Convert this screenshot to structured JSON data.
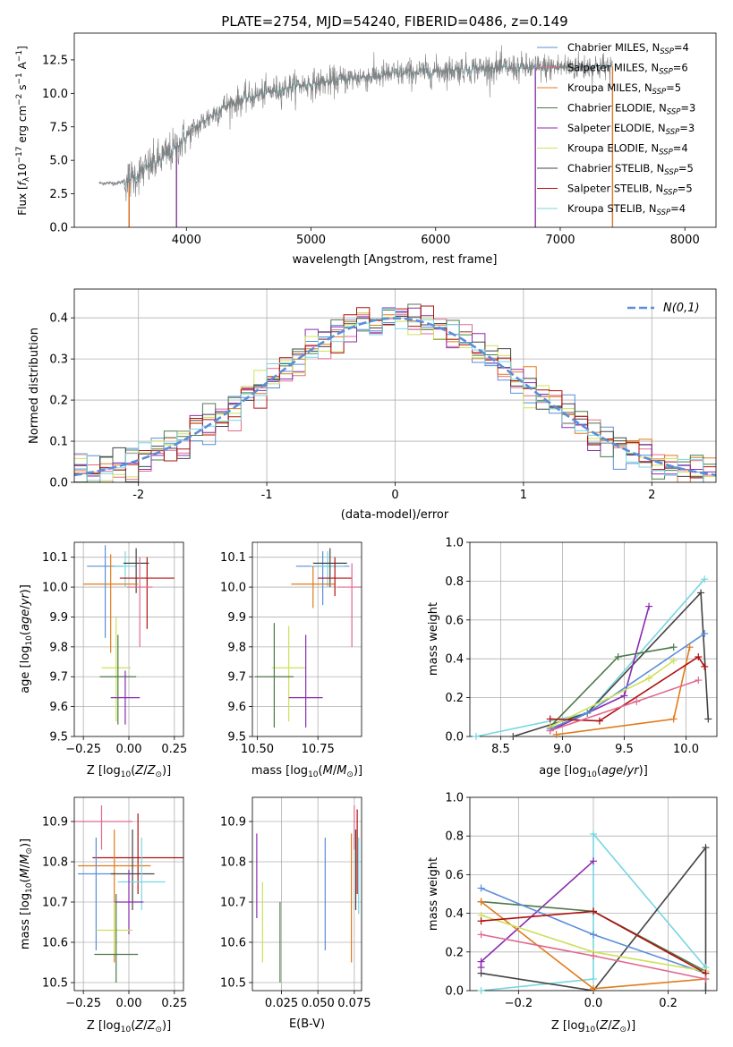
{
  "colors": {
    "Chabrier MILES": "#5b8dd9",
    "Salpeter MILES": "#e06a8e",
    "Kroupa MILES": "#e07b1c",
    "Chabrier ELODIE": "#4c7a48",
    "Salpeter ELODIE": "#8b2cb0",
    "Kroupa ELODIE": "#cfe05a",
    "Chabrier STELIB": "#444444",
    "Salpeter STELIB": "#b01010",
    "Kroupa STELIB": "#78d6e2",
    "data": "#808080",
    "gaussian": "#5b8dd9"
  },
  "chart_data": [
    {
      "id": "spectrum",
      "type": "line",
      "title": "PLATE=2754, MJD=54240, FIBERID=0486, z=0.149",
      "xlabel": "wavelength [Angstrom, rest frame]",
      "ylabel": "Flux [f_λ10^−17 erg cm^−2 s^−1 A^−1]",
      "xlim": [
        3100,
        8250
      ],
      "ylim": [
        0,
        14.5
      ],
      "xticks": [
        4000,
        5000,
        6000,
        7000,
        8000
      ],
      "yticks": [
        0.0,
        2.5,
        5.0,
        7.5,
        10.0,
        12.5
      ],
      "grid": false,
      "legend_position": "upper-right",
      "legend": [
        {
          "model": "Chabrier MILES",
          "label": "Chabrier MILES, N",
          "sub": "SSP",
          "eq": "=4"
        },
        {
          "model": "Salpeter MILES",
          "label": "Salpeter MILES, N",
          "sub": "SSP",
          "eq": "=6"
        },
        {
          "model": "Kroupa MILES",
          "label": "Kroupa MILES, N",
          "sub": "SSP",
          "eq": "=5"
        },
        {
          "model": "Chabrier ELODIE",
          "label": "Chabrier ELODIE, N",
          "sub": "SSP",
          "eq": "=3"
        },
        {
          "model": "Salpeter ELODIE",
          "label": "Salpeter ELODIE, N",
          "sub": "SSP",
          "eq": "=3"
        },
        {
          "model": "Kroupa ELODIE",
          "label": "Kroupa ELODIE, N",
          "sub": "SSP",
          "eq": "=4"
        },
        {
          "model": "Chabrier STELIB",
          "label": "Chabrier STELIB, N",
          "sub": "SSP",
          "eq": "=5"
        },
        {
          "model": "Salpeter STELIB",
          "label": "Salpeter STELIB, N",
          "sub": "SSP",
          "eq": "=5"
        },
        {
          "model": "Kroupa STELIB",
          "label": "Kroupa STELIB, N",
          "sub": "SSP",
          "eq": "=4"
        }
      ],
      "continuum_x": [
        3300,
        3450,
        3550,
        3700,
        3900,
        4000,
        4150,
        4300,
        4500,
        4700,
        4900,
        5100,
        5300,
        5600,
        5900,
        6200,
        6500,
        6800,
        7100,
        7300,
        7420
      ],
      "continuum_y": [
        3.3,
        3.3,
        3.6,
        4.5,
        5.8,
        6.8,
        8.0,
        9.0,
        9.7,
        10.2,
        10.6,
        10.8,
        11.1,
        11.4,
        11.6,
        11.8,
        11.9,
        11.9,
        12.0,
        12.0,
        12.0
      ],
      "data_range": [
        3300,
        7420
      ],
      "model_cutoffs": [
        {
          "model": "Kroupa ELODIE",
          "from": 3920,
          "to": 6800
        },
        {
          "model": "Chabrier ELODIE",
          "from": 3920,
          "to": 6800
        },
        {
          "model": "Salpeter ELODIE",
          "from": 3920,
          "to": 6800
        },
        {
          "model": "Salpeter STELIB",
          "from": 3540,
          "to": 7420
        },
        {
          "model": "Kroupa MILES",
          "from": 3540,
          "to": 7420
        }
      ]
    },
    {
      "id": "residuals",
      "type": "step",
      "xlabel": "(data-model)/error",
      "ylabel": "Normed distribution",
      "xlim": [
        -2.5,
        2.5
      ],
      "ylim": [
        0,
        0.47
      ],
      "xticks": [
        -2,
        -1,
        0,
        1,
        2
      ],
      "yticks": [
        0.0,
        0.1,
        0.2,
        0.3,
        0.4
      ],
      "grid": true,
      "bin_width": 0.1,
      "legend_position": "upper-right",
      "gaussian_label": "N(0,1)",
      "gaussian_mean": 0,
      "gaussian_sigma": 1
    },
    {
      "id": "age_vs_Z",
      "type": "errorbar",
      "xlabel": "Z [log10(Z/Z⊙)]",
      "ylabel": "age [log10(age/yr)]",
      "xlim": [
        -0.3,
        0.3
      ],
      "ylim": [
        9.5,
        10.15
      ],
      "xticks": [
        -0.25,
        0.0,
        0.25
      ],
      "xticklabels": [
        "−0.25",
        "0.00",
        "0.25"
      ],
      "yticks": [
        9.5,
        9.6,
        9.7,
        9.8,
        9.9,
        10.0,
        10.1
      ],
      "grid": true,
      "points": [
        {
          "model": "Chabrier MILES",
          "x": -0.13,
          "y": 10.07,
          "xerr": 0.1,
          "ylo": 9.83,
          "yhi": 10.14
        },
        {
          "model": "Kroupa STELIB",
          "x": -0.02,
          "y": 10.07,
          "xerr": 0.06,
          "ylo": 10.0,
          "yhi": 10.12
        },
        {
          "model": "Chabrier STELIB",
          "x": 0.04,
          "y": 10.08,
          "xerr": 0.07,
          "ylo": 9.98,
          "yhi": 10.13
        },
        {
          "model": "Kroupa MILES",
          "x": -0.1,
          "y": 10.01,
          "xerr": 0.15,
          "ylo": 9.78,
          "yhi": 10.11
        },
        {
          "model": "Salpeter STELIB",
          "x": 0.1,
          "y": 10.03,
          "xerr": 0.15,
          "ylo": 9.86,
          "yhi": 10.1
        },
        {
          "model": "Salpeter MILES",
          "x": 0.06,
          "y": 10.0,
          "xerr": 0.07,
          "ylo": 9.8,
          "yhi": 10.1
        },
        {
          "model": "Kroupa ELODIE",
          "x": -0.07,
          "y": 9.73,
          "xerr": 0.08,
          "ylo": 9.55,
          "yhi": 9.9
        },
        {
          "model": "Chabrier ELODIE",
          "x": -0.06,
          "y": 9.7,
          "xerr": 0.1,
          "ylo": 9.54,
          "yhi": 9.84
        },
        {
          "model": "Salpeter ELODIE",
          "x": -0.02,
          "y": 9.63,
          "xerr": 0.08,
          "ylo": 9.54,
          "yhi": 9.72
        }
      ]
    },
    {
      "id": "age_vs_mass",
      "type": "errorbar",
      "xlabel": "mass [log10(M/M⊙)]",
      "ylabel": "",
      "xlim": [
        10.48,
        10.93
      ],
      "ylim": [
        9.5,
        10.15
      ],
      "xticks": [
        10.5,
        10.75
      ],
      "xticklabels": [
        "10.50",
        "10.75"
      ],
      "yticks": [
        9.5,
        9.6,
        9.7,
        9.8,
        9.9,
        10.0,
        10.1
      ],
      "grid": true,
      "points": [
        {
          "model": "Chabrier MILES",
          "x": 10.77,
          "y": 10.07,
          "xerr": 0.11,
          "ylo": 9.94,
          "yhi": 10.12
        },
        {
          "model": "Kroupa STELIB",
          "x": 10.79,
          "y": 10.07,
          "xerr": 0.07,
          "ylo": 10.0,
          "yhi": 10.12
        },
        {
          "model": "Chabrier STELIB",
          "x": 10.8,
          "y": 10.08,
          "xerr": 0.07,
          "ylo": 10.0,
          "yhi": 10.13
        },
        {
          "model": "Kroupa MILES",
          "x": 10.73,
          "y": 10.01,
          "xerr": 0.09,
          "ylo": 9.93,
          "yhi": 10.07
        },
        {
          "model": "Salpeter STELIB",
          "x": 10.82,
          "y": 10.03,
          "xerr": 0.07,
          "ylo": 9.97,
          "yhi": 10.1
        },
        {
          "model": "Salpeter MILES",
          "x": 10.89,
          "y": 10.0,
          "xerr": 0.06,
          "ylo": 9.8,
          "yhi": 10.08
        },
        {
          "model": "Kroupa ELODIE",
          "x": 10.63,
          "y": 9.73,
          "xerr": 0.07,
          "ylo": 9.55,
          "yhi": 9.87
        },
        {
          "model": "Chabrier ELODIE",
          "x": 10.57,
          "y": 9.7,
          "xerr": 0.08,
          "ylo": 9.53,
          "yhi": 9.88
        },
        {
          "model": "Salpeter ELODIE",
          "x": 10.7,
          "y": 9.63,
          "xerr": 0.07,
          "ylo": 9.53,
          "yhi": 9.84
        }
      ]
    },
    {
      "id": "weight_vs_age",
      "type": "line",
      "xlabel": "age [log10(age/yr)]",
      "ylabel": "mass weight",
      "xlim": [
        8.25,
        10.25
      ],
      "ylim": [
        0,
        1.0
      ],
      "xticks": [
        8.5,
        9.0,
        9.5,
        10.0
      ],
      "xticklabels": [
        "8.5",
        "9.0",
        "9.5",
        "10.0"
      ],
      "yticks": [
        0.0,
        0.2,
        0.4,
        0.6,
        0.8,
        1.0
      ],
      "grid": true,
      "series": [
        {
          "model": "Kroupa STELIB",
          "x": [
            8.3,
            9.2,
            10.15
          ],
          "y": [
            0.0,
            0.12,
            0.81
          ]
        },
        {
          "model": "Chabrier STELIB",
          "x": [
            8.6,
            9.2,
            10.12,
            10.18
          ],
          "y": [
            0.0,
            0.12,
            0.74,
            0.09
          ]
        },
        {
          "model": "Salpeter ELODIE",
          "x": [
            8.9,
            9.5,
            9.7
          ],
          "y": [
            0.03,
            0.21,
            0.67
          ]
        },
        {
          "model": "Chabrier ELODIE",
          "x": [
            8.9,
            9.45,
            9.9
          ],
          "y": [
            0.05,
            0.41,
            0.46
          ]
        },
        {
          "model": "Kroupa MILES",
          "x": [
            8.95,
            9.9,
            10.03
          ],
          "y": [
            0.01,
            0.09,
            0.46
          ]
        },
        {
          "model": "Chabrier MILES",
          "x": [
            8.9,
            9.2,
            10.15
          ],
          "y": [
            0.04,
            0.12,
            0.53
          ]
        },
        {
          "model": "Kroupa ELODIE",
          "x": [
            8.9,
            9.7,
            9.9
          ],
          "y": [
            0.05,
            0.3,
            0.39
          ]
        },
        {
          "model": "Salpeter STELIB",
          "x": [
            8.9,
            9.3,
            10.1,
            10.15
          ],
          "y": [
            0.09,
            0.08,
            0.41,
            0.36
          ]
        },
        {
          "model": "Salpeter MILES",
          "x": [
            8.9,
            9.6,
            10.1
          ],
          "y": [
            0.03,
            0.18,
            0.29
          ]
        }
      ]
    },
    {
      "id": "mass_vs_Z",
      "type": "errorbar",
      "xlabel": "Z [log10(Z/Z⊙)]",
      "ylabel": "mass [log10(M/M⊙)]",
      "xlim": [
        -0.3,
        0.3
      ],
      "ylim": [
        10.48,
        10.96
      ],
      "xticks": [
        -0.25,
        0.0,
        0.25
      ],
      "xticklabels": [
        "−0.25",
        "0.00",
        "0.25"
      ],
      "yticks": [
        10.5,
        10.6,
        10.7,
        10.8,
        10.9
      ],
      "grid": true,
      "points": [
        {
          "model": "Salpeter MILES",
          "x": -0.15,
          "y": 10.9,
          "xerr": 0.17,
          "ylo": 10.83,
          "yhi": 10.94
        },
        {
          "model": "Salpeter STELIB",
          "x": 0.05,
          "y": 10.81,
          "xerr": 0.25,
          "ylo": 10.72,
          "yhi": 10.92
        },
        {
          "model": "Kroupa MILES",
          "x": -0.08,
          "y": 10.79,
          "xerr": 0.2,
          "ylo": 10.55,
          "yhi": 10.88
        },
        {
          "model": "Chabrier MILES",
          "x": -0.18,
          "y": 10.77,
          "xerr": 0.1,
          "ylo": 10.58,
          "yhi": 10.86
        },
        {
          "model": "Chabrier STELIB",
          "x": 0.02,
          "y": 10.77,
          "xerr": 0.12,
          "ylo": 10.68,
          "yhi": 10.88
        },
        {
          "model": "Kroupa STELIB",
          "x": 0.07,
          "y": 10.75,
          "xerr": 0.13,
          "ylo": 10.68,
          "yhi": 10.86
        },
        {
          "model": "Salpeter ELODIE",
          "x": 0.0,
          "y": 10.7,
          "xerr": 0.08,
          "ylo": 10.62,
          "yhi": 10.78
        },
        {
          "model": "Kroupa ELODIE",
          "x": -0.08,
          "y": 10.63,
          "xerr": 0.1,
          "ylo": 10.57,
          "yhi": 10.7
        },
        {
          "model": "Chabrier ELODIE",
          "x": -0.07,
          "y": 10.57,
          "xerr": 0.12,
          "ylo": 10.5,
          "yhi": 10.72
        }
      ]
    },
    {
      "id": "mass_vs_ebv",
      "type": "errorbar",
      "xlabel": "E(B-V)",
      "ylabel": "",
      "xlim": [
        0.005,
        0.08
      ],
      "ylim": [
        10.48,
        10.96
      ],
      "xticks": [
        0.025,
        0.05,
        0.075
      ],
      "xticklabels": [
        "0.025",
        "0.050",
        "0.075"
      ],
      "yticks": [
        10.5,
        10.6,
        10.7,
        10.8,
        10.9
      ],
      "grid": true,
      "points": [
        {
          "model": "Salpeter ELODIE",
          "x": 0.008,
          "y": 10.76,
          "xerr": 0,
          "ylo": 10.66,
          "yhi": 10.87
        },
        {
          "model": "Kroupa ELODIE",
          "x": 0.012,
          "y": 10.65,
          "xerr": 0,
          "ylo": 10.55,
          "yhi": 10.75
        },
        {
          "model": "Chabrier ELODIE",
          "x": 0.024,
          "y": 10.6,
          "xerr": 0,
          "ylo": 10.5,
          "yhi": 10.7
        },
        {
          "model": "Chabrier MILES",
          "x": 0.055,
          "y": 10.72,
          "xerr": 0,
          "ylo": 10.58,
          "yhi": 10.86
        },
        {
          "model": "Kroupa MILES",
          "x": 0.073,
          "y": 10.72,
          "xerr": 0,
          "ylo": 10.55,
          "yhi": 10.87
        },
        {
          "model": "Salpeter MILES",
          "x": 0.075,
          "y": 10.88,
          "xerr": 0,
          "ylo": 10.83,
          "yhi": 10.94
        },
        {
          "model": "Chabrier STELIB",
          "x": 0.076,
          "y": 10.78,
          "xerr": 0,
          "ylo": 10.68,
          "yhi": 10.88
        },
        {
          "model": "Salpeter STELIB",
          "x": 0.077,
          "y": 10.82,
          "xerr": 0,
          "ylo": 10.72,
          "yhi": 10.93
        },
        {
          "model": "Kroupa STELIB",
          "x": 0.078,
          "y": 10.76,
          "xerr": 0,
          "ylo": 10.67,
          "yhi": 10.86
        }
      ]
    },
    {
      "id": "weight_vs_Z",
      "type": "line",
      "xlabel": "Z [log10(Z/Z⊙)]",
      "ylabel": "mass weight",
      "xlim": [
        -0.33,
        0.33
      ],
      "ylim": [
        0,
        1.0
      ],
      "xticks": [
        -0.2,
        0.0,
        0.2
      ],
      "xticklabels": [
        "−0.2",
        "0.0",
        "0.2"
      ],
      "yticks": [
        0.0,
        0.2,
        0.4,
        0.6,
        0.8,
        1.0
      ],
      "grid": true,
      "series": [
        {
          "model": "Kroupa STELIB",
          "x": [
            -0.3,
            0.0,
            0.0,
            0.3
          ],
          "y": [
            0.0,
            0.06,
            0.81,
            0.12
          ]
        },
        {
          "model": "Chabrier STELIB",
          "x": [
            -0.3,
            0.0,
            0.3,
            0.3
          ],
          "y": [
            0.09,
            0.0,
            0.74,
            0.0
          ]
        },
        {
          "model": "Salpeter ELODIE",
          "x": [
            -0.3,
            -0.3,
            0.0
          ],
          "y": [
            0.12,
            0.15,
            0.67
          ]
        },
        {
          "model": "Chabrier ELODIE",
          "x": [
            -0.3,
            0.0,
            0.3
          ],
          "y": [
            0.46,
            0.41,
            0.1
          ]
        },
        {
          "model": "Kroupa MILES",
          "x": [
            -0.3,
            0.0,
            0.3
          ],
          "y": [
            0.46,
            0.01,
            0.06
          ]
        },
        {
          "model": "Chabrier MILES",
          "x": [
            -0.3,
            0.0,
            0.3
          ],
          "y": [
            0.53,
            0.29,
            0.09
          ]
        },
        {
          "model": "Kroupa ELODIE",
          "x": [
            -0.3,
            0.0,
            0.3
          ],
          "y": [
            0.39,
            0.2,
            0.1
          ]
        },
        {
          "model": "Salpeter STELIB",
          "x": [
            -0.3,
            0.0,
            0.3
          ],
          "y": [
            0.36,
            0.41,
            0.09
          ]
        },
        {
          "model": "Salpeter MILES",
          "x": [
            -0.3,
            0.0,
            0.3
          ],
          "y": [
            0.29,
            0.18,
            0.06
          ]
        }
      ]
    }
  ]
}
